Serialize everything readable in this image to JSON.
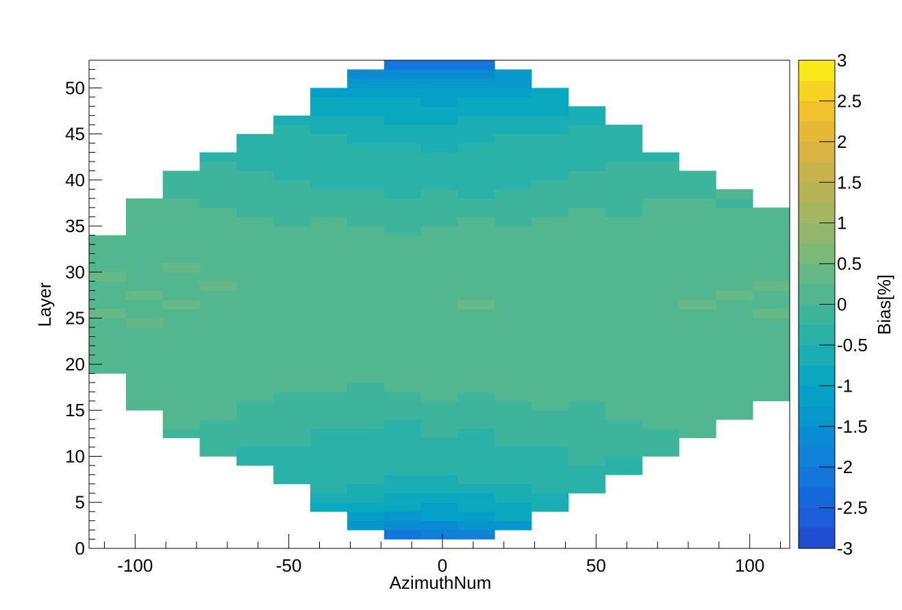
{
  "chart_data": {
    "type": "heatmap",
    "x_label": "AzimuthNum",
    "y_label": "Layer",
    "z_label": "Bias[%]",
    "xlim": [
      -115,
      113
    ],
    "ylim": [
      0,
      53
    ],
    "zlim": [
      -3,
      3
    ],
    "xticks": [
      -100,
      -50,
      0,
      50,
      100
    ],
    "xticks_minor": [
      -110,
      -90,
      -80,
      -70,
      -60,
      -40,
      -30,
      -20,
      -10,
      10,
      20,
      30,
      40,
      60,
      70,
      80,
      90,
      110
    ],
    "yticks": [
      0,
      5,
      10,
      15,
      20,
      25,
      30,
      35,
      40,
      45,
      50
    ],
    "yticks_minor": [
      1,
      2,
      3,
      4,
      6,
      7,
      8,
      9,
      11,
      12,
      13,
      14,
      16,
      17,
      18,
      19,
      21,
      22,
      23,
      24,
      26,
      27,
      28,
      29,
      31,
      32,
      33,
      34,
      36,
      37,
      38,
      39,
      41,
      42,
      43,
      44,
      46,
      47,
      48,
      49,
      51,
      52,
      53
    ],
    "zticks": [
      -3,
      -2.5,
      -2,
      -1.5,
      -1,
      -0.5,
      0,
      0.5,
      1,
      1.5,
      2,
      2.5,
      3
    ],
    "palette": [
      "#1f4fcf",
      "#1c5cd9",
      "#1668dd",
      "#1276dc",
      "#0f82d7",
      "#0b8cd2",
      "#0897cd",
      "#05a0c8",
      "#0aa8bf",
      "#1aaeb4",
      "#2bb2a8",
      "#3db59d",
      "#52b78f",
      "#66b984",
      "#7bb978",
      "#8fb86c",
      "#a3b660",
      "#b6b456",
      "#c8b24c",
      "#d8b342",
      "#e6b838",
      "#f1c22e",
      "#f7d424",
      "#f9e81b"
    ],
    "x_edges": [
      -115,
      -103,
      -91,
      -79,
      -67,
      -55,
      -43,
      -31,
      -19,
      -7,
      5,
      17,
      29,
      41,
      53,
      65,
      77,
      89,
      101,
      113
    ],
    "y_edges": [
      1,
      2,
      3,
      4,
      5,
      6,
      7,
      8,
      9,
      10,
      11,
      12,
      13,
      14,
      15,
      16,
      17,
      18,
      19,
      20,
      21,
      22,
      23,
      24,
      25,
      26,
      27,
      28,
      29,
      30,
      31,
      32,
      33,
      34,
      35,
      36,
      37,
      38,
      39,
      40,
      41,
      42,
      43,
      44,
      45,
      46,
      47,
      48,
      49,
      50,
      51,
      52,
      53
    ],
    "z": [
      [
        null,
        null,
        null,
        null,
        null,
        null,
        null,
        null,
        -2.1,
        -2.0,
        -1.9,
        null,
        null,
        null,
        null,
        null,
        null,
        null,
        null
      ],
      [
        null,
        null,
        null,
        null,
        null,
        null,
        null,
        -1.4,
        -1.6,
        -1.7,
        -1.5,
        -1.3,
        null,
        null,
        null,
        null,
        null,
        null,
        null
      ],
      [
        null,
        null,
        null,
        null,
        null,
        null,
        null,
        -1.1,
        -1.3,
        -1.2,
        -1.2,
        -1.0,
        null,
        null,
        null,
        null,
        null,
        null,
        null
      ],
      [
        null,
        null,
        null,
        null,
        null,
        null,
        -0.8,
        -0.9,
        -1.0,
        -1.1,
        -0.9,
        -0.9,
        -0.7,
        null,
        null,
        null,
        null,
        null,
        null
      ],
      [
        null,
        null,
        null,
        null,
        null,
        null,
        -0.6,
        -0.7,
        -0.8,
        -0.9,
        -0.8,
        -0.7,
        -0.6,
        null,
        null,
        null,
        null,
        null,
        null
      ],
      [
        null,
        null,
        null,
        null,
        null,
        null,
        -0.5,
        -0.6,
        -0.7,
        -0.7,
        -0.6,
        -0.6,
        -0.5,
        -0.4,
        null,
        null,
        null,
        null,
        null
      ],
      [
        null,
        null,
        null,
        null,
        null,
        -0.4,
        -0.5,
        -0.5,
        -0.6,
        -0.6,
        -0.5,
        -0.5,
        -0.4,
        -0.4,
        null,
        null,
        null,
        null,
        null
      ],
      [
        null,
        null,
        null,
        null,
        null,
        -0.3,
        -0.4,
        -0.4,
        -0.5,
        -0.5,
        -0.4,
        -0.4,
        -0.3,
        -0.3,
        -0.3,
        null,
        null,
        null,
        null
      ],
      [
        null,
        null,
        null,
        null,
        -0.3,
        -0.3,
        -0.4,
        -0.4,
        -0.5,
        -0.4,
        -0.4,
        -0.3,
        -0.3,
        -0.2,
        -0.3,
        null,
        null,
        null,
        null
      ],
      [
        null,
        null,
        null,
        -0.2,
        -0.3,
        -0.3,
        -0.3,
        -0.4,
        -0.4,
        -0.4,
        -0.3,
        -0.3,
        -0.3,
        -0.2,
        -0.2,
        -0.2,
        null,
        null,
        null
      ],
      [
        null,
        null,
        null,
        -0.1,
        -0.2,
        -0.2,
        -0.3,
        -0.3,
        -0.4,
        -0.3,
        -0.3,
        -0.2,
        -0.2,
        -0.2,
        -0.1,
        -0.1,
        null,
        null,
        null
      ],
      [
        null,
        null,
        -0.1,
        -0.1,
        -0.2,
        -0.2,
        -0.3,
        -0.3,
        -0.3,
        -0.2,
        -0.3,
        -0.2,
        -0.2,
        -0.1,
        -0.1,
        -0.1,
        0.0,
        null,
        null
      ],
      [
        null,
        null,
        0.0,
        -0.1,
        -0.1,
        -0.2,
        -0.2,
        -0.2,
        -0.3,
        -0.2,
        -0.2,
        -0.2,
        -0.1,
        -0.1,
        -0.1,
        0.0,
        0.0,
        null,
        null
      ],
      [
        null,
        null,
        0.0,
        0.0,
        -0.1,
        -0.1,
        -0.2,
        -0.2,
        -0.2,
        -0.2,
        -0.1,
        -0.2,
        -0.1,
        -0.1,
        0.0,
        0.0,
        0.0,
        0.1,
        null
      ],
      [
        null,
        0.1,
        0.0,
        0.0,
        -0.1,
        -0.1,
        -0.1,
        -0.2,
        -0.1,
        -0.1,
        -0.1,
        -0.1,
        0.0,
        -0.1,
        0.0,
        0.0,
        0.1,
        0.0,
        null
      ],
      [
        null,
        0.1,
        0.1,
        0.0,
        0.0,
        -0.1,
        -0.1,
        -0.1,
        -0.1,
        0.0,
        -0.1,
        0.0,
        0.0,
        0.0,
        0.0,
        0.1,
        0.1,
        0.1,
        0.1
      ],
      [
        null,
        0.1,
        0.1,
        0.1,
        0.0,
        0.0,
        0.0,
        -0.1,
        0.0,
        0.0,
        0.0,
        0.0,
        0.0,
        0.1,
        0.0,
        0.1,
        0.1,
        0.1,
        0.1
      ],
      [
        null,
        0.2,
        0.1,
        0.1,
        0.1,
        0.0,
        0.0,
        0.0,
        0.0,
        0.1,
        0.0,
        0.0,
        0.1,
        0.1,
        0.1,
        0.1,
        0.1,
        0.2,
        0.1
      ],
      [
        0.1,
        0.2,
        0.1,
        0.1,
        0.1,
        0.1,
        0.0,
        0.0,
        0.1,
        0.1,
        0.1,
        0.0,
        0.1,
        0.1,
        0.1,
        0.1,
        0.2,
        0.1,
        0.2
      ],
      [
        0.2,
        0.1,
        0.2,
        0.1,
        0.1,
        0.1,
        0.1,
        0.0,
        0.1,
        0.1,
        0.0,
        0.1,
        0.1,
        0.1,
        0.1,
        0.2,
        0.1,
        0.2,
        0.1
      ],
      [
        0.1,
        0.2,
        0.2,
        0.2,
        0.1,
        0.1,
        0.1,
        0.1,
        0.0,
        0.1,
        0.1,
        0.1,
        0.1,
        0.2,
        0.1,
        0.1,
        0.2,
        0.1,
        0.2
      ],
      [
        0.2,
        0.2,
        0.1,
        0.2,
        0.2,
        0.1,
        0.1,
        0.1,
        0.1,
        0.1,
        0.1,
        0.1,
        0.2,
        0.1,
        0.2,
        0.1,
        0.2,
        0.2,
        0.1
      ],
      [
        0.2,
        0.2,
        0.2,
        0.1,
        0.2,
        0.1,
        0.2,
        0.1,
        0.1,
        0.2,
        0.1,
        0.2,
        0.1,
        0.2,
        0.1,
        0.2,
        0.1,
        0.2,
        0.2
      ],
      [
        0.2,
        0.3,
        0.2,
        0.2,
        0.1,
        0.2,
        0.1,
        0.2,
        0.1,
        0.1,
        0.2,
        0.1,
        0.2,
        0.1,
        0.2,
        0.2,
        0.2,
        0.1,
        0.2
      ],
      [
        0.3,
        0.2,
        0.2,
        0.2,
        0.2,
        0.1,
        0.2,
        0.1,
        0.2,
        0.2,
        0.2,
        0.1,
        0.2,
        0.2,
        0.2,
        0.1,
        0.2,
        0.2,
        0.3
      ],
      [
        0.2,
        0.2,
        0.3,
        0.2,
        0.2,
        0.2,
        0.1,
        0.2,
        0.1,
        0.2,
        0.3,
        0.2,
        0.2,
        0.1,
        0.2,
        0.2,
        0.3,
        0.2,
        0.2
      ],
      [
        0.2,
        0.3,
        0.2,
        0.2,
        0.2,
        0.2,
        0.2,
        0.1,
        0.2,
        0.2,
        0.2,
        0.2,
        0.1,
        0.2,
        0.2,
        0.2,
        0.2,
        0.3,
        0.2
      ],
      [
        0.2,
        0.2,
        0.2,
        0.3,
        0.2,
        0.1,
        0.2,
        0.2,
        0.1,
        0.2,
        0.1,
        0.2,
        0.2,
        0.2,
        0.1,
        0.2,
        0.2,
        0.2,
        0.3
      ],
      [
        0.3,
        0.2,
        0.2,
        0.2,
        0.2,
        0.2,
        0.1,
        0.2,
        0.2,
        0.1,
        0.2,
        0.2,
        0.1,
        0.2,
        0.2,
        0.1,
        0.2,
        0.2,
        0.2
      ],
      [
        0.2,
        0.2,
        0.3,
        0.2,
        0.1,
        0.2,
        0.2,
        0.1,
        0.1,
        0.1,
        0.2,
        0.1,
        0.2,
        0.2,
        0.2,
        0.2,
        0.1,
        0.2,
        0.2
      ],
      [
        0.2,
        0.2,
        0.2,
        0.1,
        0.2,
        0.1,
        0.1,
        0.2,
        0.1,
        0.1,
        0.1,
        0.2,
        0.1,
        0.1,
        0.2,
        0.1,
        0.2,
        0.2,
        0.1
      ],
      [
        0.1,
        0.2,
        0.1,
        0.2,
        0.1,
        0.1,
        0.1,
        0.0,
        0.1,
        0.1,
        0.0,
        0.1,
        0.1,
        0.1,
        0.1,
        0.1,
        0.2,
        0.1,
        0.2
      ],
      [
        0.1,
        0.1,
        0.2,
        0.1,
        0.1,
        0.0,
        0.1,
        0.0,
        0.0,
        0.1,
        0.0,
        0.1,
        0.0,
        0.1,
        0.1,
        0.1,
        0.1,
        0.2,
        0.1
      ],
      [
        null,
        0.1,
        0.1,
        0.1,
        0.0,
        0.0,
        0.0,
        0.0,
        -0.1,
        0.0,
        0.0,
        0.0,
        0.0,
        0.1,
        0.0,
        0.1,
        0.1,
        0.1,
        0.1
      ],
      [
        null,
        0.1,
        0.0,
        0.0,
        0.0,
        -0.1,
        0.0,
        -0.1,
        -0.1,
        -0.1,
        0.0,
        -0.1,
        0.0,
        0.0,
        0.0,
        0.0,
        0.1,
        0.0,
        0.1
      ],
      [
        null,
        0.0,
        0.0,
        0.0,
        -0.1,
        -0.1,
        -0.1,
        -0.1,
        -0.2,
        -0.1,
        -0.1,
        -0.1,
        -0.1,
        0.0,
        -0.1,
        0.0,
        0.0,
        0.0,
        0.0
      ],
      [
        null,
        0.0,
        0.0,
        -0.1,
        -0.1,
        -0.1,
        -0.2,
        -0.2,
        -0.2,
        -0.2,
        -0.2,
        -0.1,
        -0.1,
        -0.1,
        -0.1,
        0.0,
        0.0,
        -0.1,
        null
      ],
      [
        null,
        null,
        -0.1,
        -0.1,
        -0.1,
        -0.2,
        -0.2,
        -0.2,
        -0.3,
        -0.2,
        -0.3,
        -0.2,
        -0.2,
        -0.2,
        -0.1,
        -0.1,
        -0.1,
        0.0,
        null
      ],
      [
        null,
        null,
        -0.1,
        -0.2,
        -0.2,
        -0.2,
        -0.3,
        -0.3,
        -0.3,
        -0.3,
        -0.3,
        -0.3,
        -0.2,
        -0.2,
        -0.2,
        -0.1,
        -0.1,
        null,
        null
      ],
      [
        null,
        null,
        -0.2,
        -0.2,
        -0.2,
        -0.3,
        -0.3,
        -0.3,
        -0.4,
        -0.3,
        -0.4,
        -0.3,
        -0.3,
        -0.2,
        -0.2,
        -0.2,
        -0.1,
        null,
        null
      ],
      [
        null,
        null,
        null,
        -0.2,
        -0.3,
        -0.3,
        -0.3,
        -0.4,
        -0.4,
        -0.4,
        -0.4,
        -0.3,
        -0.3,
        -0.3,
        -0.2,
        -0.2,
        null,
        null,
        null
      ],
      [
        null,
        null,
        null,
        -0.3,
        -0.3,
        -0.4,
        -0.4,
        -0.4,
        -0.5,
        -0.5,
        -0.4,
        -0.4,
        -0.4,
        -0.3,
        -0.3,
        -0.3,
        null,
        null,
        null
      ],
      [
        null,
        null,
        null,
        null,
        -0.4,
        -0.4,
        -0.5,
        -0.5,
        -0.5,
        -0.6,
        -0.5,
        -0.5,
        -0.4,
        -0.4,
        -0.3,
        null,
        null,
        null,
        null
      ],
      [
        null,
        null,
        null,
        null,
        -0.4,
        -0.5,
        -0.5,
        -0.6,
        -0.6,
        -0.6,
        -0.6,
        -0.5,
        -0.5,
        -0.5,
        -0.4,
        null,
        null,
        null,
        null
      ],
      [
        null,
        null,
        null,
        null,
        null,
        -0.5,
        -0.6,
        -0.6,
        -0.7,
        -0.7,
        -0.7,
        -0.6,
        -0.6,
        -0.5,
        -0.5,
        null,
        null,
        null,
        null
      ],
      [
        null,
        null,
        null,
        null,
        null,
        -0.6,
        -0.7,
        -0.7,
        -0.8,
        -0.8,
        -0.7,
        -0.7,
        -0.6,
        -0.6,
        null,
        null,
        null,
        null,
        null
      ],
      [
        null,
        null,
        null,
        null,
        null,
        null,
        -0.8,
        -0.8,
        -0.9,
        -0.9,
        -0.9,
        -0.8,
        -0.8,
        -0.7,
        null,
        null,
        null,
        null,
        null
      ],
      [
        null,
        null,
        null,
        null,
        null,
        null,
        -0.9,
        -1.0,
        -1.0,
        -1.1,
        -1.0,
        -0.9,
        -0.9,
        null,
        null,
        null,
        null,
        null,
        null
      ],
      [
        null,
        null,
        null,
        null,
        null,
        null,
        -1.1,
        -1.1,
        -1.2,
        -1.2,
        -1.2,
        -1.1,
        -1.0,
        null,
        null,
        null,
        null,
        null,
        null
      ],
      [
        null,
        null,
        null,
        null,
        null,
        null,
        null,
        -1.3,
        -1.4,
        -1.4,
        -1.4,
        -1.3,
        null,
        null,
        null,
        null,
        null,
        null,
        null
      ],
      [
        null,
        null,
        null,
        null,
        null,
        null,
        null,
        -1.6,
        -1.7,
        -1.7,
        -1.6,
        -1.5,
        null,
        null,
        null,
        null,
        null,
        null,
        null
      ],
      [
        null,
        null,
        null,
        null,
        null,
        null,
        null,
        null,
        -2.1,
        -2.2,
        -2.1,
        null,
        null,
        null,
        null,
        null,
        null,
        null,
        null
      ]
    ]
  }
}
